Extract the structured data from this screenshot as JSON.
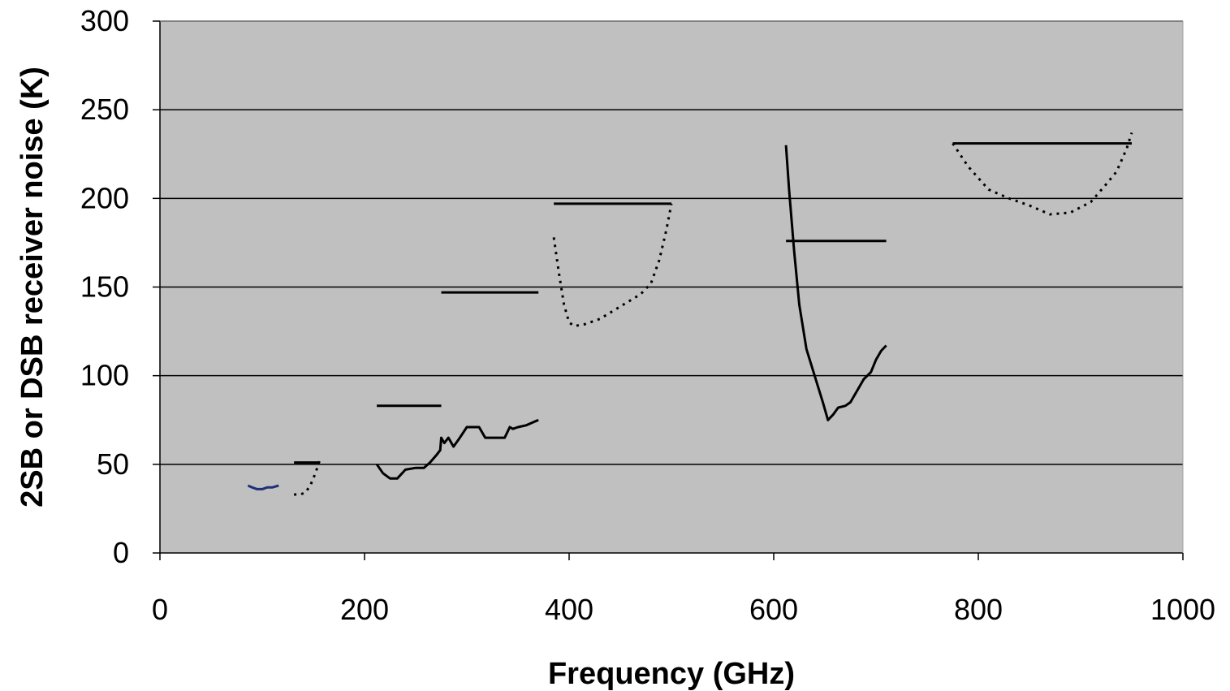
{
  "chart_data": {
    "type": "line",
    "title": "",
    "xlabel": "Frequency (GHz)",
    "ylabel": "2SB or DSB receiver noise (K)",
    "xlim": [
      0,
      1000
    ],
    "ylim": [
      0,
      300
    ],
    "xticks": [
      0,
      200,
      400,
      600,
      800,
      1000
    ],
    "yticks": [
      0,
      50,
      100,
      150,
      200,
      250,
      300
    ],
    "grid": "horizontal",
    "legend": "none",
    "colors": {
      "plot_background": "#c0c0c0",
      "grid": "#000000",
      "line": "#000000",
      "blue_line": "#1f2f7a"
    },
    "series": [
      {
        "style": "solid",
        "color": "#1f2f7a",
        "x": [
          86,
          90,
          95,
          100,
          105,
          110,
          116
        ],
        "y": [
          38,
          37,
          36,
          36,
          37,
          37,
          38
        ]
      },
      {
        "style": "solid",
        "x": [
          131,
          156
        ],
        "y": [
          51,
          51
        ]
      },
      {
        "style": "dotted",
        "x": [
          131,
          137,
          142,
          147,
          152,
          156
        ],
        "y": [
          33,
          33,
          34,
          38,
          45,
          52
        ]
      },
      {
        "style": "solid",
        "x": [
          212,
          275
        ],
        "y": [
          83,
          83
        ]
      },
      {
        "style": "solid",
        "x": [
          212,
          218,
          225,
          232,
          240,
          250,
          258,
          264,
          270,
          274,
          275,
          278,
          282,
          287,
          292,
          300,
          305,
          312,
          318,
          323,
          330,
          337,
          342,
          345,
          350,
          358,
          366,
          370
        ],
        "y": [
          50,
          45,
          42,
          42,
          47,
          48,
          48,
          51,
          55,
          58,
          65,
          62,
          65,
          60,
          64,
          71,
          71,
          71,
          65,
          65,
          65,
          65,
          71,
          70,
          71,
          72,
          74,
          75
        ]
      },
      {
        "style": "solid",
        "x": [
          275,
          370
        ],
        "y": [
          147,
          147
        ]
      },
      {
        "style": "solid",
        "x": [
          385,
          500
        ],
        "y": [
          197,
          197
        ]
      },
      {
        "style": "dotted",
        "x": [
          385,
          390,
          395,
          400,
          405,
          415,
          430,
          450,
          470,
          480,
          488,
          495,
          500
        ],
        "y": [
          178,
          158,
          140,
          130,
          128,
          129,
          132,
          139,
          146,
          152,
          165,
          182,
          197
        ]
      },
      {
        "style": "solid",
        "x": [
          612,
          615,
          620,
          625,
          632,
          640,
          648,
          653,
          658,
          663,
          670,
          675,
          680,
          688,
          695,
          700,
          705,
          710
        ],
        "y": [
          230,
          205,
          170,
          140,
          115,
          100,
          85,
          75,
          78,
          82,
          83,
          85,
          90,
          98,
          102,
          109,
          114,
          117
        ]
      },
      {
        "style": "solid",
        "x": [
          612,
          710
        ],
        "y": [
          176,
          176
        ]
      },
      {
        "style": "solid",
        "x": [
          775,
          950
        ],
        "y": [
          231,
          231
        ]
      },
      {
        "style": "dotted",
        "x": [
          775,
          790,
          810,
          830,
          850,
          870,
          890,
          910,
          925,
          935,
          945,
          950
        ],
        "y": [
          231,
          218,
          205,
          200,
          196,
          191,
          192,
          198,
          208,
          215,
          228,
          237
        ]
      }
    ]
  }
}
